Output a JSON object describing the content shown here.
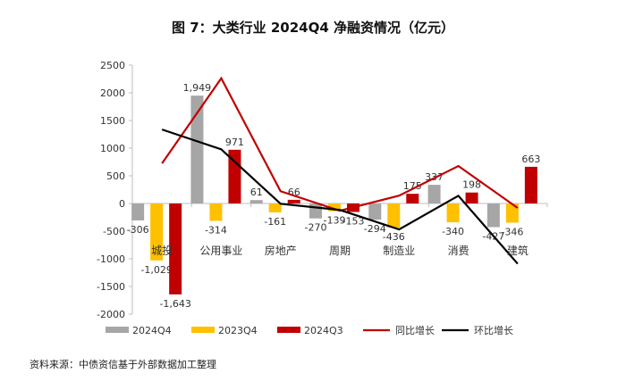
{
  "chart_data": {
    "type": "bar",
    "title": "图 7：大类行业 2024Q4 净融资情况（亿元）",
    "categories": [
      "城投",
      "公用事业",
      "房地产",
      "周期",
      "制造业",
      "消费",
      "建筑"
    ],
    "ylim": [
      -2000,
      2500
    ],
    "yticks": [
      -2000,
      -1500,
      -1000,
      -500,
      0,
      500,
      1000,
      1500,
      2000,
      2500
    ],
    "ytick_labels": [
      "-2000",
      "-1500",
      "-1000",
      "-500",
      "0",
      "500",
      "1000",
      "1500",
      "2000",
      "2500"
    ],
    "series": [
      {
        "name": "2024Q4",
        "kind": "bar",
        "color": "#a6a6a6",
        "values": [
          -306,
          1949,
          61,
          -270,
          -294,
          337,
          -427
        ],
        "labels": [
          "-306",
          "1,949",
          "61",
          "-270",
          "-294",
          "337",
          "-427"
        ]
      },
      {
        "name": "2023Q4",
        "kind": "bar",
        "color": "#ffc000",
        "values": [
          -1029,
          -314,
          -161,
          -139,
          -436,
          -340,
          -346
        ],
        "labels": [
          "-1,029",
          "-314",
          "-161",
          "-139",
          "-436",
          "-340",
          "-346"
        ]
      },
      {
        "name": "2024Q3",
        "kind": "bar",
        "color": "#c00000",
        "values": [
          -1643,
          971,
          66,
          -153,
          175,
          198,
          663
        ],
        "labels": [
          "-1,643",
          "971",
          "66",
          "-153",
          "175",
          "198",
          "663"
        ]
      },
      {
        "name": "同比增长",
        "kind": "line",
        "color": "#c00000",
        "values": [
          723,
          2263,
          222,
          -131,
          142,
          677,
          -81
        ]
      },
      {
        "name": "环比增长",
        "kind": "line",
        "color": "#000000",
        "values": [
          1337,
          978,
          -5,
          -117,
          -469,
          139,
          -1090
        ]
      }
    ],
    "legend": "bottom",
    "grid": false
  },
  "source": "资料来源：中债资信基于外部数据加工整理"
}
